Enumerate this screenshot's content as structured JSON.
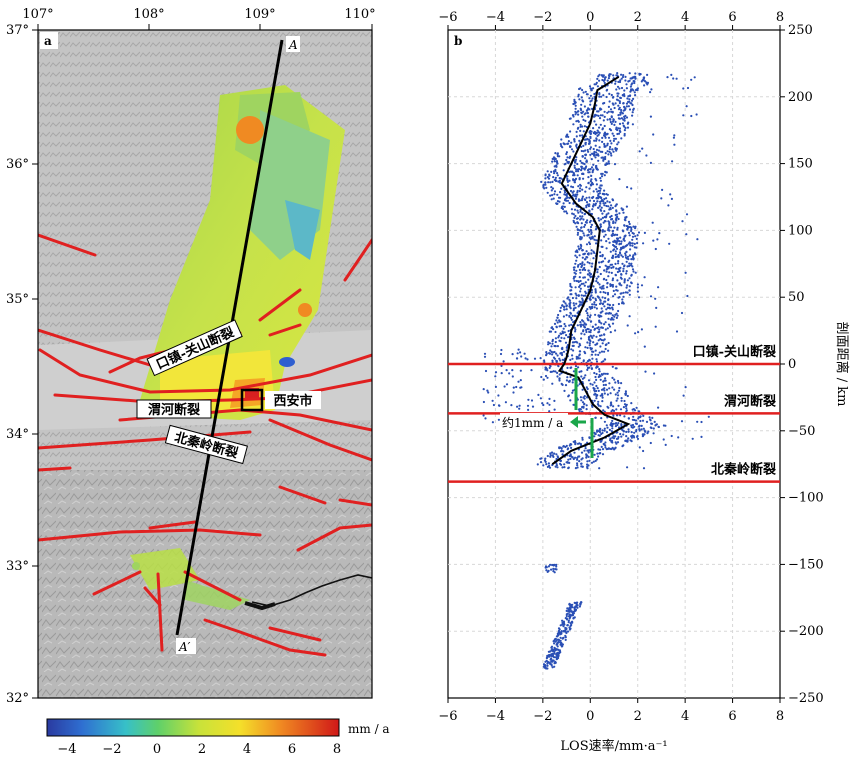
{
  "panel_a": {
    "label": "a",
    "lon_ticks": [
      "107°",
      "108°",
      "109°",
      "110°"
    ],
    "lat_ticks": [
      "37°",
      "36°",
      "35°",
      "34°",
      "33°",
      "32°"
    ],
    "profile_start": "A",
    "profile_end": "A′",
    "fault_labels": [
      "口镇-关山断裂",
      "渭河断裂",
      "北秦岭断裂"
    ],
    "city_label": "西安市",
    "colorbar": {
      "unit": "mm / a",
      "ticks": [
        "−4",
        "−2",
        "0",
        "2",
        "4",
        "6",
        "8"
      ],
      "range": [
        -5,
        8
      ]
    },
    "colors": {
      "fault": "#e02020",
      "profile": "#000000",
      "hillshade": "#bdbdbd"
    }
  },
  "panel_b": {
    "label": "b",
    "x_ticks": [
      "−6",
      "−4",
      "−2",
      "0",
      "2",
      "4",
      "6",
      "8"
    ],
    "y_ticks": [
      "250",
      "200",
      "150",
      "100",
      "50",
      "0",
      "−50",
      "−100",
      "−150",
      "−200",
      "−250"
    ],
    "xlabel": "LOS速率/mm·a⁻¹",
    "ylabel": "剖面距离 / km",
    "annotation": "约1mm / a",
    "fault_lines": [
      {
        "label": "口镇-关山断裂",
        "distance_km": 0
      },
      {
        "label": "渭河断裂",
        "distance_km": -37
      },
      {
        "label": "北秦岭断裂",
        "distance_km": -88
      }
    ],
    "colors": {
      "points": "#2a4fb5",
      "mean": "#000000",
      "fault": "#e02020",
      "arrow": "#1aa64a"
    }
  },
  "chart_data": {
    "type": "scatter",
    "xlim": [
      -6,
      8
    ],
    "ylim": [
      -250,
      250
    ],
    "grid": true,
    "mean_profile": {
      "y": [
        215,
        205,
        195,
        180,
        165,
        150,
        135,
        120,
        110,
        100,
        85,
        70,
        55,
        40,
        25,
        12,
        5,
        0,
        -5,
        -10,
        -20,
        -30,
        -38,
        -45,
        -55,
        -65,
        -75
      ],
      "x": [
        1.2,
        0.3,
        0.2,
        0.0,
        -0.4,
        -0.8,
        -1.2,
        -0.6,
        0.1,
        0.4,
        0.3,
        0.2,
        0.0,
        -0.4,
        -0.8,
        -0.9,
        -1.0,
        -1.1,
        -1.3,
        -0.5,
        -0.2,
        0.1,
        0.6,
        1.6,
        0.6,
        -0.8,
        -1.6
      ]
    },
    "scatter_clusters": [
      {
        "y_range": [
          -80,
          220
        ],
        "x_spread": [
          -2.5,
          3.5
        ]
      },
      {
        "y_range": [
          -230,
          -150
        ],
        "x_spread": [
          -1.9,
          -0.5
        ]
      }
    ]
  }
}
